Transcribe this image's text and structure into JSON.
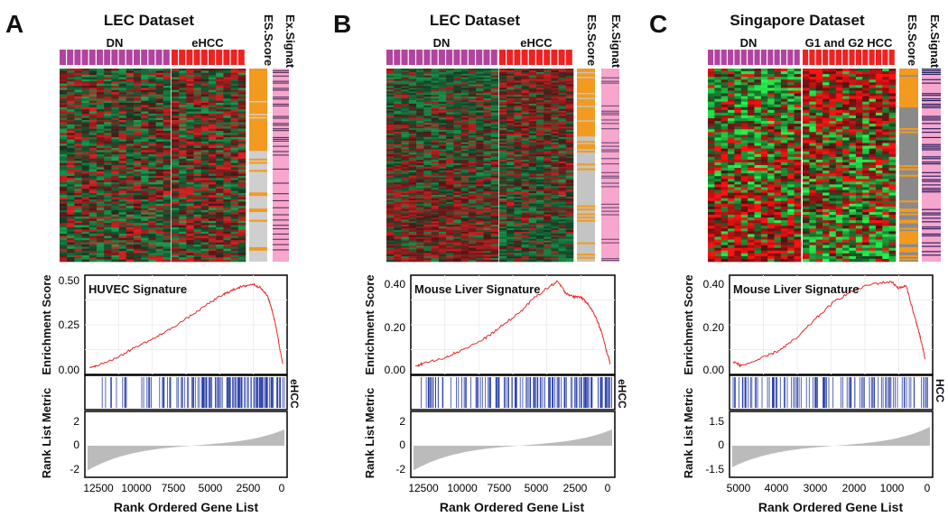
{
  "panels": [
    {
      "letter": "A",
      "dataset_title": "LEC Dataset",
      "group_left": "DN",
      "group_right": "eHCC",
      "es_column_label": "ES.Score",
      "ex_column_label": "Ex.Signat",
      "signature_label": "HUVEC Signature",
      "y_axis_es_label": "Enrichment Score",
      "y_axis_rank_label": "Rank List Metric",
      "phenotype_label": "eHCC",
      "x_axis_label": "Rank Ordered Gene List",
      "es_ticks": [
        "0.50",
        "0.25",
        "0.00"
      ],
      "rank_ticks": [
        "2",
        "0",
        "-2"
      ],
      "x_ticks": [
        "12500",
        "10000",
        "7500",
        "5000",
        "2500",
        "0"
      ]
    },
    {
      "letter": "B",
      "dataset_title": "LEC Dataset",
      "group_left": "DN",
      "group_right": "eHCC",
      "es_column_label": "ES.Score",
      "ex_column_label": "Ex.Signat",
      "signature_label": "Mouse Liver Signature",
      "y_axis_es_label": "Enrichment Score",
      "y_axis_rank_label": "Rank List Metric",
      "phenotype_label": "eHCC",
      "x_axis_label": "Rank Ordered Gene List",
      "es_ticks": [
        "0.40",
        "0.20",
        "0.00"
      ],
      "rank_ticks": [
        "2",
        "0",
        "-2"
      ],
      "x_ticks": [
        "12500",
        "10000",
        "7500",
        "5000",
        "2500",
        "0"
      ]
    },
    {
      "letter": "C",
      "dataset_title": "Singapore Dataset",
      "group_left": "DN",
      "group_right": "G1 and G2 HCC",
      "es_column_label": "ES.Score",
      "ex_column_label": "Ex.Signat",
      "signature_label": "Mouse Liver Signature",
      "y_axis_es_label": "Enrichment Score",
      "y_axis_rank_label": "Rank List Metric",
      "phenotype_label": "HCC",
      "x_axis_label": "Rank Ordered Gene List",
      "es_ticks": [
        "0.40",
        "0.20",
        "0.00"
      ],
      "rank_ticks": [
        "1.5",
        "0",
        "-1.5"
      ],
      "x_ticks": [
        "5000",
        "4000",
        "3000",
        "2000",
        "1000",
        "0"
      ]
    }
  ],
  "chart_data": [
    {
      "type": "line",
      "panel": "A",
      "title": "HUVEC Signature",
      "xlabel": "Rank Ordered Gene List",
      "ylabel": "Enrichment Score",
      "x": [
        13000,
        12500,
        11000,
        10000,
        8500,
        7500,
        6000,
        5000,
        4000,
        3500,
        3000,
        2500,
        2000,
        1500,
        1000,
        700,
        400,
        200,
        0
      ],
      "y": [
        0.01,
        0.02,
        0.07,
        0.12,
        0.18,
        0.23,
        0.31,
        0.37,
        0.42,
        0.44,
        0.46,
        0.47,
        0.48,
        0.46,
        0.41,
        0.33,
        0.22,
        0.12,
        0.03
      ],
      "xlim": [
        13300,
        -300
      ],
      "ylim": [
        -0.03,
        0.53
      ],
      "colors": {
        "line": "#e8282a",
        "hits": "#2a3fa8",
        "metric": "#bbbbbb"
      }
    },
    {
      "type": "line",
      "panel": "B",
      "title": "Mouse Liver Signature",
      "xlabel": "Rank Ordered Gene List",
      "ylabel": "Enrichment Score",
      "x": [
        13000,
        12500,
        11000,
        10000,
        8500,
        7500,
        6000,
        5000,
        4000,
        3500,
        3000,
        2500,
        2000,
        1500,
        1000,
        600,
        300,
        0
      ],
      "y": [
        0.01,
        0.02,
        0.05,
        0.08,
        0.13,
        0.18,
        0.26,
        0.33,
        0.38,
        0.4,
        0.35,
        0.33,
        0.33,
        0.3,
        0.24,
        0.17,
        0.09,
        0.02
      ],
      "xlim": [
        13300,
        -300
      ],
      "ylim": [
        -0.03,
        0.43
      ],
      "colors": {
        "line": "#e8282a",
        "hits": "#2a3fa8",
        "metric": "#bbbbbb"
      }
    },
    {
      "type": "line",
      "panel": "C",
      "title": "Mouse Liver Signature",
      "xlabel": "Rank Ordered Gene List",
      "ylabel": "Enrichment Score",
      "x": [
        5200,
        5000,
        4500,
        4000,
        3500,
        3000,
        2500,
        2000,
        1500,
        1000,
        800,
        600,
        400,
        300,
        200,
        100
      ],
      "y": [
        0.03,
        0.01,
        0.04,
        0.08,
        0.14,
        0.23,
        0.31,
        0.36,
        0.39,
        0.4,
        0.37,
        0.38,
        0.25,
        0.19,
        0.12,
        0.04
      ],
      "xlim": [
        5300,
        -100
      ],
      "ylim": [
        -0.03,
        0.43
      ],
      "colors": {
        "line": "#e8282a",
        "hits": "#2a3fa8",
        "metric": "#bbbbbb"
      }
    }
  ]
}
